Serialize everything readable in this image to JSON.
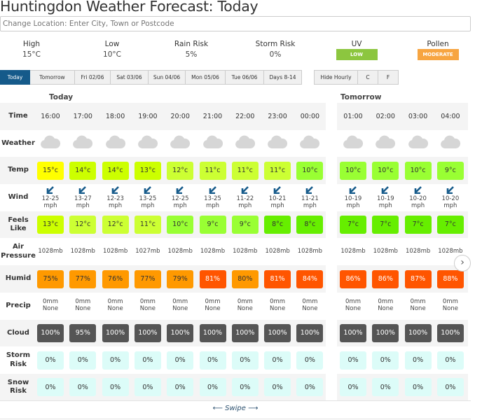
{
  "title": "Huntingdon Weather Forecast: Today",
  "location_placeholder": "Change Location: Enter City, Town or Postcode",
  "summary": [
    {
      "label": "High",
      "value": "15°C"
    },
    {
      "label": "Low",
      "value": "10°C"
    },
    {
      "label": "Rain Risk",
      "value": "5%"
    },
    {
      "label": "Storm Risk",
      "value": "0%"
    },
    {
      "label": "UV",
      "badge": "LOW",
      "color": "#8cc63f"
    },
    {
      "label": "Pollen",
      "badge": "MODERATE",
      "color": "#f7a541"
    }
  ],
  "tabs": [
    "Today",
    "Tomorrow",
    "Fri 02/06",
    "Sat 03/06",
    "Sun 04/06",
    "Mon 05/06",
    "Tue 06/06",
    "Days 8-14"
  ],
  "options": [
    "Hide Hourly",
    "C",
    "F"
  ],
  "sections": {
    "today": "Today",
    "tomorrow": "Tomorrow"
  },
  "row_labels": {
    "time": "Time",
    "weather": "Weather",
    "temp": "Temp",
    "wind": "Wind",
    "feels": "Feels Like",
    "pressure": "Air Pressure",
    "humid": "Humid",
    "precip": "Precip",
    "cloud": "Cloud",
    "storm": "Storm Risk",
    "snow": "Snow Risk"
  },
  "hours": [
    {
      "time": "16:00",
      "weather": "cloud",
      "temp": "15°c",
      "temp_color": "#ffff00",
      "wind": "12-25",
      "wind_unit": "mph",
      "feels": "13°c",
      "feels_color": "#ccff00",
      "pressure": "1028mb",
      "humid": "75%",
      "humid_color": "#ff9900",
      "precip": "0mm",
      "precip_type": "None",
      "cloud": "100%",
      "storm": "0%",
      "snow": "0%"
    },
    {
      "time": "17:00",
      "weather": "cloud",
      "temp": "14°c",
      "temp_color": "#ccff00",
      "wind": "13-27",
      "wind_unit": "mph",
      "feels": "12°c",
      "feels_color": "#ccff33",
      "pressure": "1028mb",
      "humid": "77%",
      "humid_color": "#ff9900",
      "precip": "0mm",
      "precip_type": "None",
      "cloud": "95%",
      "storm": "0%",
      "snow": "0%"
    },
    {
      "time": "18:00",
      "weather": "cloud",
      "temp": "14°c",
      "temp_color": "#ccff00",
      "wind": "12-23",
      "wind_unit": "mph",
      "feels": "12°c",
      "feels_color": "#ccff33",
      "pressure": "1028mb",
      "humid": "76%",
      "humid_color": "#ff9900",
      "precip": "0mm",
      "precip_type": "None",
      "cloud": "100%",
      "storm": "0%",
      "snow": "0%"
    },
    {
      "time": "19:00",
      "weather": "cloud",
      "temp": "13°c",
      "temp_color": "#ccff00",
      "wind": "13-25",
      "wind_unit": "mph",
      "feels": "11°c",
      "feels_color": "#ccff33",
      "pressure": "1027mb",
      "humid": "77%",
      "humid_color": "#ff9900",
      "precip": "0mm",
      "precip_type": "None",
      "cloud": "100%",
      "storm": "0%",
      "snow": "0%"
    },
    {
      "time": "20:00",
      "weather": "cloud",
      "temp": "12°c",
      "temp_color": "#ccff33",
      "wind": "12-25",
      "wind_unit": "mph",
      "feels": "10°c",
      "feels_color": "#99ff33",
      "pressure": "1028mb",
      "humid": "79%",
      "humid_color": "#ff9900",
      "precip": "0mm",
      "precip_type": "None",
      "cloud": "100%",
      "storm": "0%",
      "snow": "0%"
    },
    {
      "time": "21:00",
      "weather": "cloud",
      "temp": "11°c",
      "temp_color": "#ccff33",
      "wind": "13-25",
      "wind_unit": "mph",
      "feels": "9°c",
      "feels_color": "#99ff33",
      "pressure": "1028mb",
      "humid": "81%",
      "humid_color": "#ff5500",
      "precip": "0mm",
      "precip_type": "None",
      "cloud": "100%",
      "storm": "0%",
      "snow": "0%"
    },
    {
      "time": "22:00",
      "weather": "cloud",
      "temp": "11°c",
      "temp_color": "#ccff33",
      "wind": "11-22",
      "wind_unit": "mph",
      "feels": "9°c",
      "feels_color": "#99ff33",
      "pressure": "1028mb",
      "humid": "80%",
      "humid_color": "#ff9900",
      "precip": "0mm",
      "precip_type": "None",
      "cloud": "100%",
      "storm": "0%",
      "snow": "0%"
    },
    {
      "time": "23:00",
      "weather": "cloud",
      "temp": "11°c",
      "temp_color": "#ccff33",
      "wind": "10-21",
      "wind_unit": "mph",
      "feels": "8°c",
      "feels_color": "#66ee00",
      "pressure": "1028mb",
      "humid": "81%",
      "humid_color": "#ff5500",
      "precip": "0mm",
      "precip_type": "None",
      "cloud": "100%",
      "storm": "0%",
      "snow": "0%"
    },
    {
      "time": "00:00",
      "weather": "cloud",
      "temp": "10°c",
      "temp_color": "#99ff33",
      "wind": "11-21",
      "wind_unit": "mph",
      "feels": "8°c",
      "feels_color": "#66ee00",
      "pressure": "1028mb",
      "humid": "84%",
      "humid_color": "#ff5500",
      "precip": "0mm",
      "precip_type": "None",
      "cloud": "100%",
      "storm": "0%",
      "snow": "0%"
    },
    {
      "time": "01:00",
      "weather": "cloud",
      "temp": "10°c",
      "temp_color": "#99ff33",
      "wind": "10-19",
      "wind_unit": "mph",
      "feels": "7°c",
      "feels_color": "#66ee00",
      "pressure": "1028mb",
      "humid": "86%",
      "humid_color": "#ff5500",
      "precip": "0mm",
      "precip_type": "None",
      "cloud": "100%",
      "storm": "0%",
      "snow": "0%"
    },
    {
      "time": "02:00",
      "weather": "cloud",
      "temp": "10°c",
      "temp_color": "#99ff33",
      "wind": "10-19",
      "wind_unit": "mph",
      "feels": "7°c",
      "feels_color": "#66ee00",
      "pressure": "1028mb",
      "humid": "86%",
      "humid_color": "#ff5500",
      "precip": "0mm",
      "precip_type": "None",
      "cloud": "100%",
      "storm": "0%",
      "snow": "0%"
    },
    {
      "time": "03:00",
      "weather": "cloud",
      "temp": "10°c",
      "temp_color": "#99ff33",
      "wind": "10-20",
      "wind_unit": "mph",
      "feels": "7°c",
      "feels_color": "#66ee00",
      "pressure": "1028mb",
      "humid": "87%",
      "humid_color": "#ff5500",
      "precip": "0mm",
      "precip_type": "None",
      "cloud": "100%",
      "storm": "0%",
      "snow": "0%"
    },
    {
      "time": "04:00",
      "weather": "cloud",
      "temp": "9°c",
      "temp_color": "#99ff33",
      "wind": "10-20",
      "wind_unit": "mph",
      "feels": "7°c",
      "feels_color": "#66ee00",
      "pressure": "1028mb",
      "humid": "88%",
      "humid_color": "#ff5500",
      "precip": "0mm",
      "precip_type": "None",
      "cloud": "100%",
      "storm": "0%",
      "snow": "0%"
    }
  ],
  "colors": {
    "cloud_box": "#555555",
    "risk_box": "#dcfcf8",
    "weather_icon": "#d6d6d6",
    "wind_arrow": "#155a8a"
  },
  "swipe": "Swipe",
  "next_icon": "chevron-right-icon"
}
